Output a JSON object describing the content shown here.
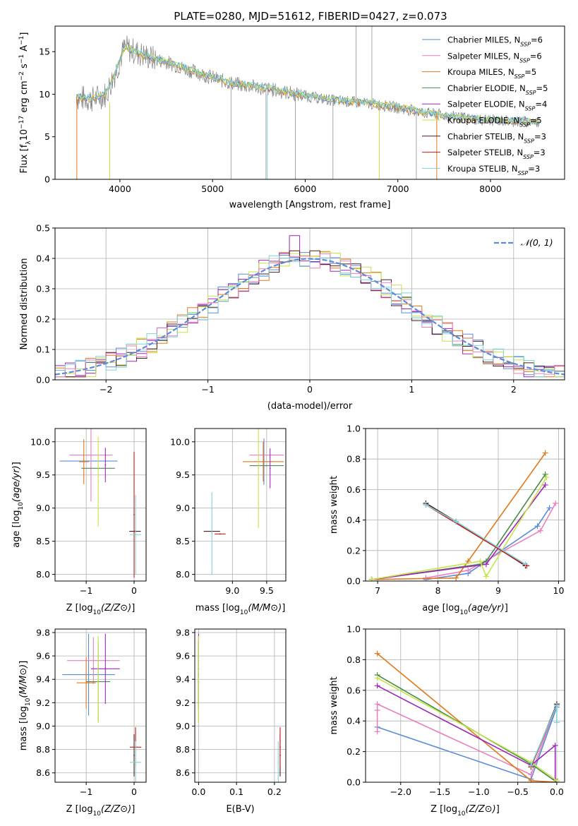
{
  "figure_title": "PLATE=0280, MJD=51612, FIBERID=0427, z=0.073",
  "colors": {
    "data": "#808080",
    "Chabrier MILES": "#5b8bd9",
    "Salpeter MILES": "#e87fbf",
    "Kroupa MILES": "#e0781c",
    "Chabrier ELODIE": "#4a8c4a",
    "Salpeter ELODIE": "#9b27b5",
    "Kroupa ELODIE": "#c6e34a",
    "Chabrier STELIB": "#4a1c1c",
    "Salpeter STELIB": "#c41a1a",
    "Kroupa STELIB": "#7fd3d8",
    "gaussian": "#5b8bd9"
  },
  "chart_data": [
    {
      "id": "spectrum",
      "type": "line",
      "xlabel": "wavelength [Angstrom, rest frame]",
      "ylabel_parts": [
        "Flux [f",
        "λ",
        "10",
        "−17",
        " erg cm",
        "−2",
        " s",
        "−1",
        " A",
        "−1",
        "]"
      ],
      "xlim": [
        3300,
        8800
      ],
      "ylim": [
        0,
        18
      ],
      "xticks": [
        4000,
        5000,
        6000,
        7000,
        8000
      ],
      "yticks": [
        0,
        5,
        10,
        15
      ],
      "legend_position": "upper-right",
      "legend": [
        {
          "name": "Chabrier MILES",
          "n": "6"
        },
        {
          "name": "Salpeter MILES",
          "n": "6"
        },
        {
          "name": "Kroupa MILES",
          "n": "5"
        },
        {
          "name": "Chabrier ELODIE",
          "n": "5"
        },
        {
          "name": "Salpeter ELODIE",
          "n": "4"
        },
        {
          "name": "Kroupa ELODIE",
          "n": "5"
        },
        {
          "name": "Chabrier STELIB",
          "n": "3"
        },
        {
          "name": "Salpeter STELIB",
          "n": "3"
        },
        {
          "name": "Kroupa STELIB",
          "n": "3"
        }
      ],
      "continuum": [
        [
          3530,
          9.6
        ],
        [
          3700,
          9.4
        ],
        [
          3850,
          10.0
        ],
        [
          3950,
          12.5
        ],
        [
          4050,
          15.5
        ],
        [
          4200,
          14.8
        ],
        [
          4350,
          14.2
        ],
        [
          4500,
          13.8
        ],
        [
          4700,
          13.0
        ],
        [
          4900,
          12.3
        ],
        [
          5100,
          11.6
        ],
        [
          5300,
          11.1
        ],
        [
          5500,
          10.8
        ],
        [
          5700,
          10.4
        ],
        [
          5900,
          10.0
        ],
        [
          6100,
          9.6
        ],
        [
          6300,
          9.3
        ],
        [
          6500,
          9.1
        ],
        [
          6700,
          8.9
        ],
        [
          6900,
          8.6
        ],
        [
          7100,
          8.2
        ],
        [
          7300,
          7.8
        ],
        [
          7500,
          7.5
        ],
        [
          7700,
          7.2
        ],
        [
          7900,
          7.0
        ],
        [
          8100,
          6.9
        ],
        [
          8300,
          6.8
        ],
        [
          8500,
          6.7
        ]
      ]
    },
    {
      "id": "residuals",
      "type": "histogram",
      "xlabel": "(data-model)/error",
      "ylabel": "Normed distribution",
      "xlim": [
        -2.5,
        2.5
      ],
      "ylim": [
        0,
        0.5
      ],
      "xticks": [
        -2,
        -1,
        0,
        1,
        2
      ],
      "xtick_labels": [
        "−2",
        "−1",
        "0",
        "1",
        "2"
      ],
      "yticks": [
        0.0,
        0.1,
        0.2,
        0.3,
        0.4,
        0.5
      ],
      "ytick_labels": [
        "0.0",
        "0.1",
        "0.2",
        "0.3",
        "0.4",
        "0.5"
      ],
      "bin_width": 0.1,
      "grid": true,
      "legend_label": "𝒩(0, 1)",
      "legend_position": "upper-right"
    },
    {
      "id": "z-vs-age",
      "type": "scatter",
      "xlabel": "Z [log10(Z/Z⊙)]",
      "ylabel": "age [log10(age/yr)]",
      "xlim": [
        -1.65,
        0.25
      ],
      "ylim": [
        7.9,
        10.2
      ],
      "xticks": [
        -1,
        0
      ],
      "xtick_labels": [
        "−1",
        "0"
      ],
      "yticks": [
        8.0,
        8.5,
        9.0,
        9.5,
        10.0
      ],
      "ytick_labels": [
        "8.0",
        "8.5",
        "9.0",
        "9.5",
        "10.0"
      ],
      "points": [
        {
          "model": "Chabrier MILES",
          "x": -0.95,
          "y": 9.71,
          "x_err": 0.6,
          "y_err": 0.0
        },
        {
          "model": "Salpeter MILES",
          "x": -0.9,
          "y": 9.8,
          "x_err": 0.45,
          "y_err": 0.7
        },
        {
          "model": "Kroupa MILES",
          "x": -1.05,
          "y": 9.7,
          "x_err": 0.1,
          "y_err": 0.34
        },
        {
          "model": "Chabrier ELODIE",
          "x": -0.75,
          "y": 9.6,
          "x_err": 0.35,
          "y_err": 0.0
        },
        {
          "model": "Salpeter ELODIE",
          "x": -0.6,
          "y": 9.65,
          "x_err": 0.0,
          "y_err": 0.26
        },
        {
          "model": "Kroupa ELODIE",
          "x": -0.75,
          "y": 9.4,
          "x_err": 0.0,
          "y_err": 0.68
        },
        {
          "model": "Chabrier STELIB",
          "x": 0.02,
          "y": 8.65,
          "x_err": 0.12,
          "y_err": 0.0
        },
        {
          "model": "Salpeter STELIB",
          "x": 0.0,
          "y": 8.9,
          "x_err": 0.0,
          "y_err": 0.95
        },
        {
          "model": "Kroupa STELIB",
          "x": 0.03,
          "y": 8.6,
          "x_err": 0.12,
          "y_err": 0.6
        }
      ]
    },
    {
      "id": "mass-vs-age",
      "type": "scatter",
      "xlabel": "mass [log10(M/M⊙)]",
      "ylabel": "",
      "xlim": [
        8.45,
        9.78
      ],
      "ylim": [
        7.9,
        10.2
      ],
      "xticks": [
        9.0,
        9.5
      ],
      "xtick_labels": [
        "9.0",
        "9.5"
      ],
      "yticks": [
        8.0,
        8.5,
        9.0,
        9.5,
        10.0
      ],
      "ytick_labels": [
        "8.0",
        "8.5",
        "9.0",
        "9.5",
        "10.0"
      ],
      "points": [
        {
          "model": "Chabrier MILES",
          "x": 9.46,
          "y": 9.7,
          "x_err": 0.15,
          "y_err": 0.35
        },
        {
          "model": "Salpeter MILES",
          "x": 9.5,
          "y": 9.8,
          "x_err": 0.25,
          "y_err": 0.0
        },
        {
          "model": "Kroupa MILES",
          "x": 9.45,
          "y": 9.7,
          "x_err": 0.3,
          "y_err": 0.3
        },
        {
          "model": "Chabrier ELODIE",
          "x": 9.5,
          "y": 9.64,
          "x_err": 0.25,
          "y_err": 0.0
        },
        {
          "model": "Salpeter ELODIE",
          "x": 9.55,
          "y": 9.6,
          "x_err": 0.0,
          "y_err": 0.3
        },
        {
          "model": "Kroupa ELODIE",
          "x": 9.38,
          "y": 9.6,
          "x_err": 0.0,
          "y_err": 0.9
        },
        {
          "model": "Chabrier STELIB",
          "x": 8.7,
          "y": 8.65,
          "x_err": 0.12,
          "y_err": 0.0
        },
        {
          "model": "Salpeter STELIB",
          "x": 8.82,
          "y": 8.61,
          "x_err": 0.08,
          "y_err": 0.0
        },
        {
          "model": "Kroupa STELIB",
          "x": 8.7,
          "y": 8.62,
          "x_err": 0.0,
          "y_err": 0.62
        }
      ]
    },
    {
      "id": "age-vs-weight",
      "type": "line",
      "xlabel": "age [log10(age/yr)]",
      "ylabel": "mass weight",
      "xlim": [
        6.8,
        10.1
      ],
      "ylim": [
        0,
        1.0
      ],
      "xticks": [
        7,
        8,
        9,
        10
      ],
      "xtick_labels": [
        "7",
        "8",
        "9",
        "10"
      ],
      "yticks": [
        0.0,
        0.2,
        0.4,
        0.6,
        0.8,
        1.0
      ],
      "ytick_labels": [
        "0.0",
        "0.2",
        "0.4",
        "0.6",
        "0.8",
        "1.0"
      ],
      "series": [
        {
          "model": "Chabrier MILES",
          "x": [
            7.8,
            8.5,
            9.65,
            9.85
          ],
          "y": [
            0.01,
            0.05,
            0.36,
            0.48
          ]
        },
        {
          "model": "Salpeter MILES",
          "x": [
            7.8,
            8.5,
            9.7,
            9.95
          ],
          "y": [
            0.02,
            0.07,
            0.33,
            0.51
          ]
        },
        {
          "model": "Kroupa MILES",
          "x": [
            6.9,
            8.3,
            8.5,
            9.78
          ],
          "y": [
            0.01,
            0.02,
            0.13,
            0.84
          ]
        },
        {
          "model": "Chabrier ELODIE",
          "x": [
            6.9,
            8.7,
            8.8,
            9.78
          ],
          "y": [
            0.01,
            0.11,
            0.13,
            0.7
          ]
        },
        {
          "model": "Salpeter ELODIE",
          "x": [
            6.9,
            8.8,
            9.78
          ],
          "y": [
            0.01,
            0.11,
            0.63
          ]
        },
        {
          "model": "Kroupa ELODIE",
          "x": [
            6.9,
            8.7,
            8.8,
            9.8
          ],
          "y": [
            0.01,
            0.13,
            0.03,
            0.68
          ]
        },
        {
          "model": "Chabrier STELIB",
          "x": [
            7.8,
            8.3,
            9.45
          ],
          "y": [
            0.51,
            0.39,
            0.1
          ]
        },
        {
          "model": "Salpeter STELIB",
          "x": [
            7.8,
            9.47
          ],
          "y": [
            0.5,
            0.1
          ]
        },
        {
          "model": "Kroupa STELIB",
          "x": [
            7.8,
            8.3,
            9.45
          ],
          "y": [
            0.5,
            0.39,
            0.11
          ]
        }
      ]
    },
    {
      "id": "z-vs-mass",
      "type": "scatter",
      "xlabel": "Z [log10(Z/Z⊙)]",
      "ylabel": "mass [log10(M/M⊙)]",
      "xlim": [
        -1.65,
        0.25
      ],
      "ylim": [
        8.52,
        9.83
      ],
      "xticks": [
        -1,
        0
      ],
      "xtick_labels": [
        "−1",
        "0"
      ],
      "yticks": [
        8.6,
        8.8,
        9.0,
        9.2,
        9.4,
        9.6,
        9.8
      ],
      "ytick_labels": [
        "8.6",
        "8.8",
        "9.0",
        "9.2",
        "9.4",
        "9.6",
        "9.8"
      ],
      "points": [
        {
          "model": "Chabrier MILES",
          "x": -0.95,
          "y": 9.44,
          "x_err": 0.55,
          "y_err": 0.35
        },
        {
          "model": "Salpeter MILES",
          "x": -0.85,
          "y": 9.56,
          "x_err": 0.55,
          "y_err": 0.2
        },
        {
          "model": "Kroupa MILES",
          "x": -1.0,
          "y": 9.37,
          "x_err": 0.2,
          "y_err": 0.22
        },
        {
          "model": "Chabrier ELODIE",
          "x": -0.75,
          "y": 9.38,
          "x_err": 0.25,
          "y_err": 0.35
        },
        {
          "model": "Salpeter ELODIE",
          "x": -0.6,
          "y": 9.49,
          "x_err": 0.3,
          "y_err": 0.3
        },
        {
          "model": "Kroupa ELODIE",
          "x": -0.75,
          "y": 9.4,
          "x_err": 0.0,
          "y_err": 0.37
        },
        {
          "model": "Chabrier STELIB",
          "x": 0.0,
          "y": 8.75,
          "x_err": 0.0,
          "y_err": 0.18
        },
        {
          "model": "Salpeter STELIB",
          "x": 0.03,
          "y": 8.82,
          "x_err": 0.12,
          "y_err": 0.17
        },
        {
          "model": "Kroupa STELIB",
          "x": 0.03,
          "y": 8.69,
          "x_err": 0.12,
          "y_err": 0.18
        }
      ]
    },
    {
      "id": "ebv-vs-mass",
      "type": "scatter",
      "xlabel": "E(B-V)",
      "ylabel": "",
      "xlim": [
        -0.01,
        0.23
      ],
      "ylim": [
        8.52,
        9.83
      ],
      "xticks": [
        0.0,
        0.1,
        0.2
      ],
      "xtick_labels": [
        "0.0",
        "0.1",
        "0.2"
      ],
      "yticks": [
        8.6,
        8.8,
        9.0,
        9.2,
        9.4,
        9.6,
        9.8
      ],
      "ytick_labels": [
        "8.6",
        "8.8",
        "9.0",
        "9.2",
        "9.4",
        "9.6",
        "9.8"
      ],
      "points": [
        {
          "model": "Chabrier MILES",
          "x": 0.0,
          "y": 9.44,
          "x_err": 0.0,
          "y_err": 0.3
        },
        {
          "model": "Salpeter MILES",
          "x": 0.0,
          "y": 9.56,
          "x_err": 0.0,
          "y_err": 0.15
        },
        {
          "model": "Kroupa MILES",
          "x": 0.0,
          "y": 9.37,
          "x_err": 0.0,
          "y_err": 0.2
        },
        {
          "model": "Chabrier ELODIE",
          "x": 0.0,
          "y": 9.38,
          "x_err": 0.0,
          "y_err": 0.35
        },
        {
          "model": "Salpeter ELODIE",
          "x": 0.0,
          "y": 9.49,
          "x_err": 0.0,
          "y_err": 0.3
        },
        {
          "model": "Kroupa ELODIE",
          "x": 0.0,
          "y": 9.4,
          "x_err": 0.0,
          "y_err": 0.37
        },
        {
          "model": "Chabrier STELIB",
          "x": 0.215,
          "y": 8.75,
          "x_err": 0.0,
          "y_err": 0.18
        },
        {
          "model": "Salpeter STELIB",
          "x": 0.215,
          "y": 8.82,
          "x_err": 0.0,
          "y_err": 0.17
        },
        {
          "model": "Kroupa STELIB",
          "x": 0.21,
          "y": 8.69,
          "x_err": 0.0,
          "y_err": 0.18
        }
      ]
    },
    {
      "id": "z-vs-weight",
      "type": "line",
      "xlabel": "Z [log10(Z/Z⊙)]",
      "ylabel": "mass weight",
      "xlim": [
        -2.45,
        0.1
      ],
      "ylim": [
        0,
        1.0
      ],
      "xticks": [
        -2.0,
        -1.5,
        -1.0,
        -0.5,
        0.0
      ],
      "xtick_labels": [
        "−2.0",
        "−1.5",
        "−1.0",
        "−0.5",
        "0.0"
      ],
      "yticks": [
        0.0,
        0.2,
        0.4,
        0.6,
        0.8,
        1.0
      ],
      "ytick_labels": [
        "0.0",
        "0.2",
        "0.4",
        "0.6",
        "0.8",
        "1.0"
      ],
      "series": [
        {
          "model": "Chabrier MILES",
          "x": [
            -2.3,
            -0.33,
            0.0
          ],
          "y": [
            0.36,
            0.02,
            0.49
          ]
        },
        {
          "model": "Salpeter MILES",
          "x": [
            -2.3,
            -2.3,
            -2.3,
            -0.33,
            0.0
          ],
          "y": [
            0.33,
            0.47,
            0.51,
            0.05,
            0.51
          ]
        },
        {
          "model": "Kroupa MILES",
          "x": [
            -2.3,
            -0.33,
            0.0
          ],
          "y": [
            0.84,
            0.01,
            0.0
          ]
        },
        {
          "model": "Chabrier ELODIE",
          "x": [
            -2.3,
            -0.33,
            0.0
          ],
          "y": [
            0.7,
            0.12,
            0.0
          ]
        },
        {
          "model": "Salpeter ELODIE",
          "x": [
            -2.3,
            -0.33,
            -0.02,
            -0.02
          ],
          "y": [
            0.63,
            0.11,
            0.24,
            0.02
          ]
        },
        {
          "model": "Kroupa ELODIE",
          "x": [
            -2.3,
            -0.33,
            0.0
          ],
          "y": [
            0.68,
            0.13,
            0.01
          ]
        },
        {
          "model": "Chabrier STELIB",
          "x": [
            -0.33,
            0.0
          ],
          "y": [
            0.1,
            0.51
          ]
        },
        {
          "model": "Salpeter STELIB",
          "x": [
            -0.33,
            0.0
          ],
          "y": [
            0.1,
            0.5
          ]
        },
        {
          "model": "Kroupa STELIB",
          "x": [
            -0.33,
            0.0,
            0.0
          ],
          "y": [
            0.11,
            0.5,
            0.39
          ]
        }
      ]
    }
  ]
}
